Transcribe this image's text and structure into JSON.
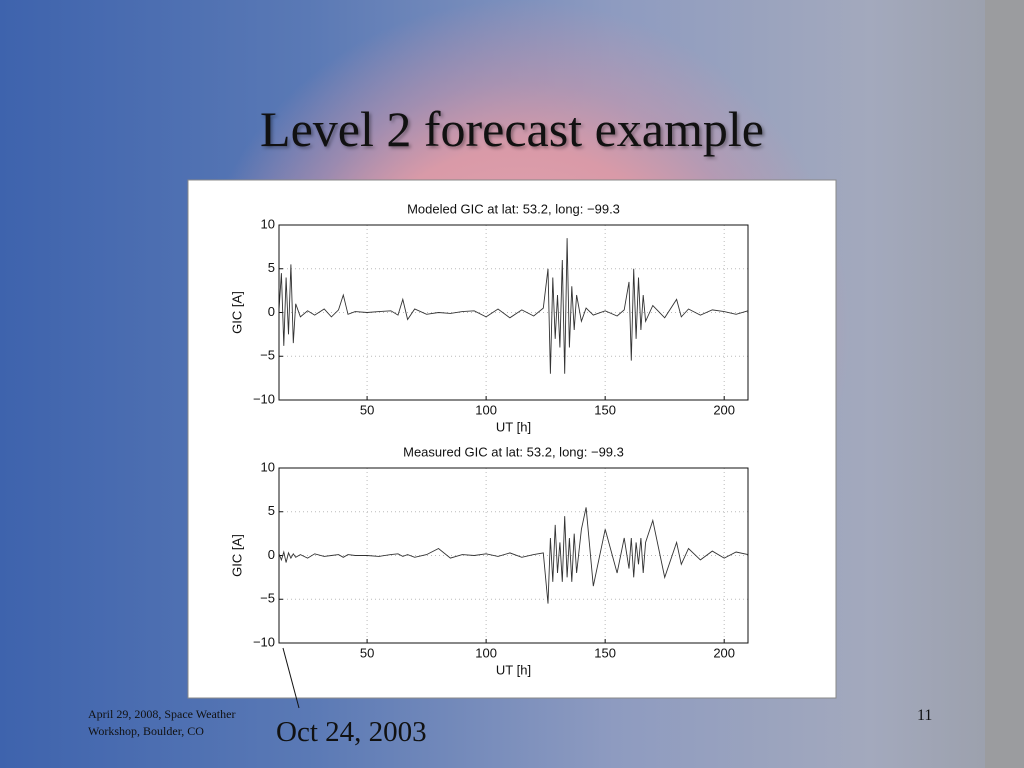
{
  "slide": {
    "title": "Level 2 forecast example",
    "footer": [
      "April 29, 2008, Space Weather",
      "Workshop, Boulder, CO"
    ],
    "page_number": "11",
    "annotation": "Oct 24, 2003"
  },
  "chart_data": [
    {
      "type": "line",
      "title": "Modeled GIC at lat: 53.2, long: −99.3",
      "x_label": "UT [h]",
      "y_label": "GIC [A]",
      "color": "#333333",
      "grid": true,
      "xlim": [
        13,
        210
      ],
      "xticks": [
        50,
        100,
        150,
        200
      ],
      "ylim": [
        -10,
        10
      ],
      "yticks": [
        {
          "value": -10,
          "label": "−10"
        },
        {
          "value": -5,
          "label": "−5"
        },
        0,
        5,
        10
      ],
      "x": [
        13,
        14,
        15,
        16,
        17,
        18,
        19,
        20,
        22,
        25,
        28,
        32,
        35,
        38,
        40,
        42,
        45,
        50,
        55,
        60,
        63,
        65,
        67,
        70,
        75,
        80,
        85,
        90,
        95,
        100,
        105,
        110,
        115,
        120,
        124,
        126,
        127,
        128,
        129,
        130,
        131,
        132,
        133,
        134,
        135,
        136,
        137,
        138,
        140,
        142,
        145,
        150,
        155,
        158,
        160,
        161,
        162,
        163,
        164,
        165,
        166,
        167,
        170,
        175,
        180,
        182,
        185,
        190,
        195,
        200,
        205,
        210
      ],
      "values": [
        0.3,
        4.5,
        -3.8,
        4,
        -2.5,
        5.5,
        -3.5,
        1,
        -0.5,
        0.2,
        -0.3,
        0.4,
        -0.5,
        0.3,
        2,
        -0.2,
        0.1,
        0,
        0.1,
        0.2,
        -0.3,
        1.5,
        -0.8,
        0.4,
        -0.2,
        0,
        -0.1,
        0.1,
        0.2,
        -0.5,
        0.4,
        -0.6,
        0.3,
        -0.4,
        0.5,
        5,
        -7,
        4,
        -3,
        2,
        -4,
        6,
        -7,
        8.5,
        -4,
        3,
        -2,
        2,
        -1,
        0.5,
        -0.3,
        0.2,
        -0.4,
        0.3,
        3.5,
        -5.5,
        5,
        -3,
        4,
        -2,
        2,
        -1,
        0.8,
        -0.6,
        1.5,
        -0.5,
        0.4,
        -0.3,
        0.3,
        0.1,
        -0.2,
        0.2
      ]
    },
    {
      "type": "line",
      "title": "Measured GIC at lat: 53.2, long: −99.3",
      "x_label": "UT [h]",
      "y_label": "GIC [A]",
      "color": "#333333",
      "grid": true,
      "xlim": [
        13,
        210
      ],
      "xticks": [
        50,
        100,
        150,
        200
      ],
      "ylim": [
        -10,
        10
      ],
      "yticks": [
        {
          "value": -10,
          "label": "−10"
        },
        {
          "value": -5,
          "label": "−5"
        },
        0,
        5,
        10
      ],
      "x": [
        13,
        14,
        15,
        16,
        17,
        18,
        19,
        20,
        22,
        25,
        28,
        32,
        35,
        38,
        40,
        42,
        45,
        50,
        55,
        60,
        63,
        65,
        67,
        70,
        75,
        80,
        85,
        90,
        95,
        100,
        105,
        110,
        115,
        120,
        124,
        126,
        127,
        128,
        129,
        130,
        131,
        132,
        133,
        134,
        135,
        136,
        137,
        138,
        140,
        142,
        145,
        150,
        155,
        158,
        160,
        161,
        162,
        163,
        164,
        165,
        166,
        167,
        170,
        175,
        180,
        182,
        185,
        190,
        195,
        200,
        205,
        210
      ],
      "values": [
        0.2,
        -0.5,
        0.4,
        -0.8,
        0.3,
        -0.3,
        0.2,
        -0.2,
        0.1,
        -0.3,
        0.2,
        -0.1,
        0,
        0.1,
        -0.2,
        0.1,
        0,
        0,
        -0.1,
        0.1,
        0.2,
        -0.1,
        0.1,
        -0.2,
        0.1,
        0.8,
        -0.3,
        0.1,
        0,
        0.2,
        -0.1,
        0.3,
        -0.2,
        0.1,
        0.3,
        -5.5,
        2,
        -3,
        3.5,
        -2,
        1.5,
        -3,
        4.5,
        -2.5,
        2,
        -3,
        2.5,
        -2,
        3,
        5.5,
        -3.5,
        3,
        -2,
        2,
        -1.5,
        2,
        -2.5,
        1.5,
        -1,
        2,
        -2,
        1.5,
        4,
        -2.5,
        1.5,
        -1,
        0.8,
        -0.5,
        0.5,
        -0.3,
        0.4,
        0.1
      ]
    }
  ]
}
